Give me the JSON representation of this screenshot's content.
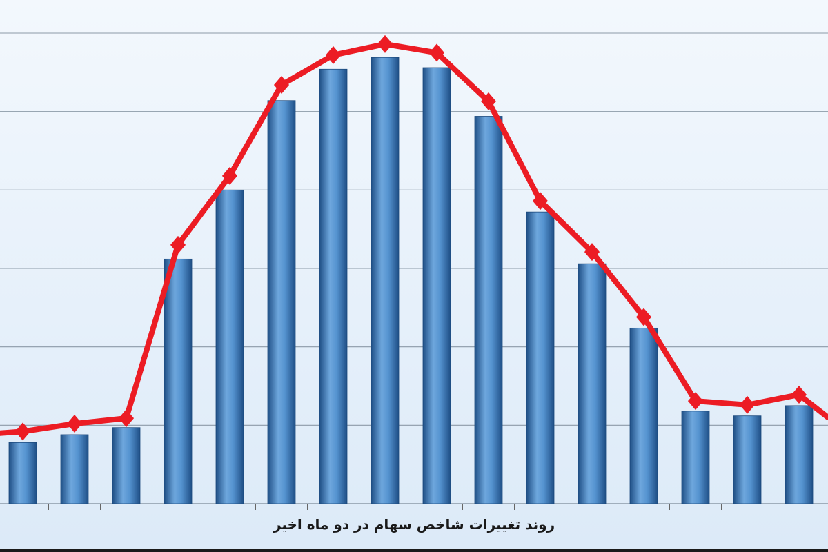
{
  "chart_data": {
    "type": "bar",
    "title": "روند تغییرات شاخص سهام در دو ماه اخیر",
    "xlabel": "",
    "ylabel": "",
    "ylim": [
      0,
      6
    ],
    "grid": true,
    "categories": [
      "",
      "",
      "",
      "",
      "",
      "",
      "",
      "",
      "",
      "",
      "",
      "",
      "",
      "",
      "",
      ""
    ],
    "series": [
      {
        "kind": "bar",
        "color": "#3d7fc1",
        "values": [
          0.78,
          0.88,
          0.97,
          3.12,
          4.0,
          5.14,
          5.54,
          5.69,
          5.56,
          4.94,
          3.72,
          3.06,
          2.24,
          1.18,
          1.12,
          1.25
        ]
      },
      {
        "kind": "line",
        "color": "#ec1c24",
        "marker": "diamond",
        "values": [
          0.92,
          1.02,
          1.09,
          3.3,
          4.18,
          5.34,
          5.72,
          5.86,
          5.75,
          5.13,
          3.86,
          3.21,
          2.38,
          1.31,
          1.26,
          1.39
        ]
      }
    ],
    "line_continues": {
      "left_value": 0.9,
      "right_value": 1.1
    },
    "colors": {
      "background_top": "#f3f8fd",
      "background_bottom": "#dceaf8",
      "gridline": "#8c9aa8",
      "bar_dark": "#1f4f86",
      "bar_light": "#6ea7dd",
      "line": "#ec1c24"
    }
  }
}
